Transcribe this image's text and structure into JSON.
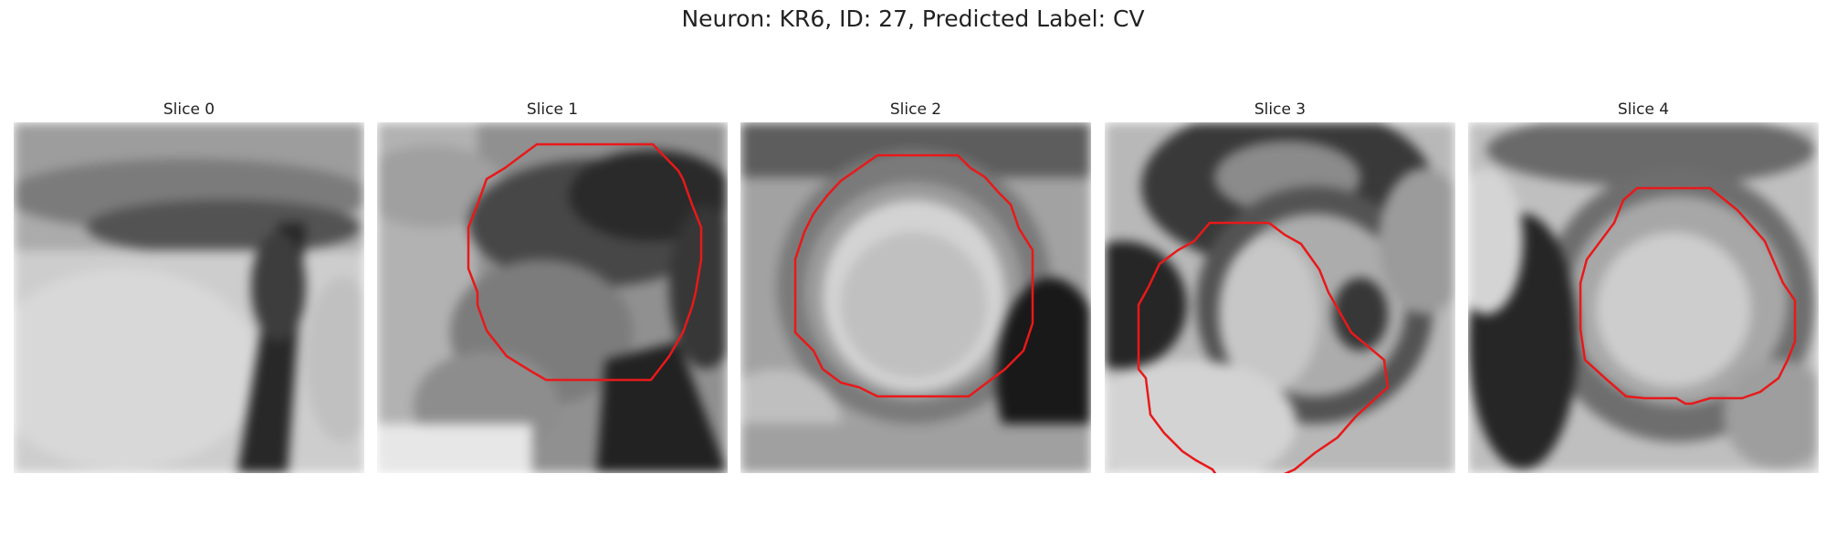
{
  "figure": {
    "title": "Neuron: KR6, ID: 27, Predicted Label: CV"
  },
  "colors": {
    "outline": "#e8191a",
    "background": "#ffffff"
  },
  "panels": [
    {
      "title": "Slice 0",
      "has_outline": false
    },
    {
      "title": "Slice 1",
      "has_outline": true
    },
    {
      "title": "Slice 2",
      "has_outline": true
    },
    {
      "title": "Slice 3",
      "has_outline": true
    },
    {
      "title": "Slice 4",
      "has_outline": true
    }
  ]
}
